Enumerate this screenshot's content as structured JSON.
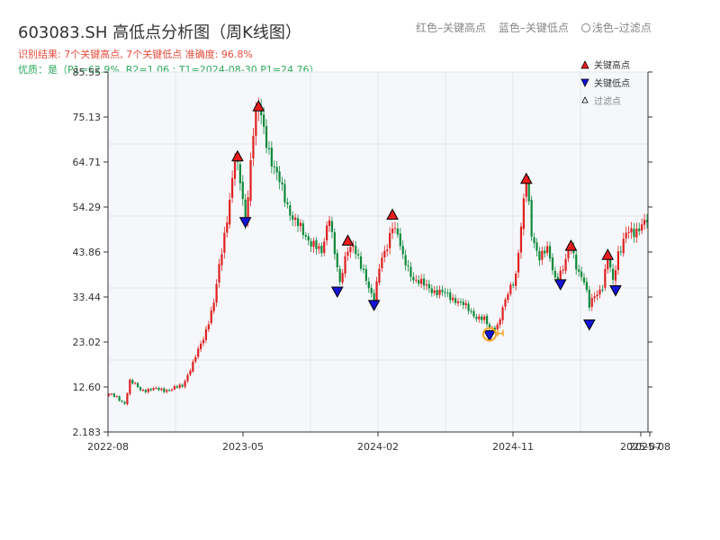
{
  "header": {
    "title": "603083.SH 高低点分析图（周K线图）",
    "subtitle": "识别结果: 7个关键高点, 7个关键低点  准确度: 96.8%",
    "quality": "优质：是（P1=62.9%, R2=1.06 ; T1=2024-08-30 P1=24.76）"
  },
  "top_legend": {
    "red": "红色–关键高点",
    "blue": "蓝色–关键低点",
    "light": "浅色–过滤点"
  },
  "legend": {
    "high": "关键高点",
    "low": "关键低点",
    "filtered": "过滤点"
  },
  "colors": {
    "up": "#e02020",
    "down": "#0f8a3a",
    "high_marker": "#e81c1c",
    "low_marker": "#1414d8",
    "accent_circle": "#f5a623",
    "plot_bg": "#f5f7fa",
    "grid": "#e3e6ea"
  },
  "chart_data": {
    "type": "candlestick",
    "x_labels": [
      "2022-08",
      "2023-05",
      "2024-02",
      "2024-11",
      "2025-07",
      "2025-08"
    ],
    "y_ticks": [
      "85.55",
      "75.13",
      "64.71",
      "54.29",
      "43.86",
      "33.44",
      "23.02",
      "12.60",
      "2.183"
    ],
    "ylim": [
      2.183,
      85.55
    ],
    "anchors": [
      [
        0,
        11
      ],
      [
        6,
        9
      ],
      [
        8,
        14
      ],
      [
        12,
        12
      ],
      [
        18,
        12
      ],
      [
        20,
        12
      ],
      [
        24,
        12
      ],
      [
        28,
        13
      ],
      [
        32,
        18
      ],
      [
        36,
        24
      ],
      [
        40,
        32
      ],
      [
        44,
        48
      ],
      [
        48,
        65
      ],
      [
        50,
        60
      ],
      [
        52,
        51
      ],
      [
        55,
        72
      ],
      [
        57,
        77
      ],
      [
        60,
        70
      ],
      [
        63,
        63
      ],
      [
        66,
        58
      ],
      [
        70,
        52
      ],
      [
        74,
        48
      ],
      [
        78,
        46
      ],
      [
        81,
        43
      ],
      [
        84,
        53
      ],
      [
        86,
        44
      ],
      [
        88,
        36
      ],
      [
        91,
        45
      ],
      [
        93,
        46
      ],
      [
        96,
        40
      ],
      [
        99,
        36
      ],
      [
        101,
        33
      ],
      [
        103,
        40
      ],
      [
        106,
        45
      ],
      [
        108,
        51
      ],
      [
        110,
        48
      ],
      [
        112,
        42
      ],
      [
        116,
        38
      ],
      [
        120,
        36
      ],
      [
        124,
        35
      ],
      [
        128,
        34
      ],
      [
        132,
        33
      ],
      [
        136,
        31
      ],
      [
        140,
        29
      ],
      [
        143,
        28
      ],
      [
        145,
        26
      ],
      [
        148,
        27
      ],
      [
        152,
        34
      ],
      [
        155,
        39
      ],
      [
        157,
        50
      ],
      [
        159,
        60
      ],
      [
        161,
        48
      ],
      [
        164,
        43
      ],
      [
        167,
        44
      ],
      [
        170,
        38
      ],
      [
        173,
        40
      ],
      [
        176,
        45
      ],
      [
        178,
        41
      ],
      [
        181,
        37
      ],
      [
        183,
        31
      ],
      [
        185,
        34
      ],
      [
        188,
        36
      ],
      [
        190,
        42
      ],
      [
        192,
        37
      ],
      [
        194,
        44
      ],
      [
        197,
        48
      ],
      [
        200,
        48
      ],
      [
        203,
        51
      ],
      [
        205,
        51
      ]
    ],
    "key_highs": [
      {
        "index": 49,
        "value": 66.0
      },
      {
        "index": 57,
        "value": 77.6
      },
      {
        "index": 91,
        "value": 46.5
      },
      {
        "index": 108,
        "value": 52.5
      },
      {
        "index": 159,
        "value": 60.8
      },
      {
        "index": 176,
        "value": 45.3
      },
      {
        "index": 190,
        "value": 43.2
      }
    ],
    "key_lows": [
      {
        "index": 52,
        "value": 50.8
      },
      {
        "index": 87,
        "value": 34.7
      },
      {
        "index": 101,
        "value": 31.6
      },
      {
        "index": 145,
        "value": 24.6
      },
      {
        "index": 172,
        "value": 36.4
      },
      {
        "index": 183,
        "value": 27.1
      },
      {
        "index": 193,
        "value": 35.0
      }
    ],
    "filtered": []
  }
}
